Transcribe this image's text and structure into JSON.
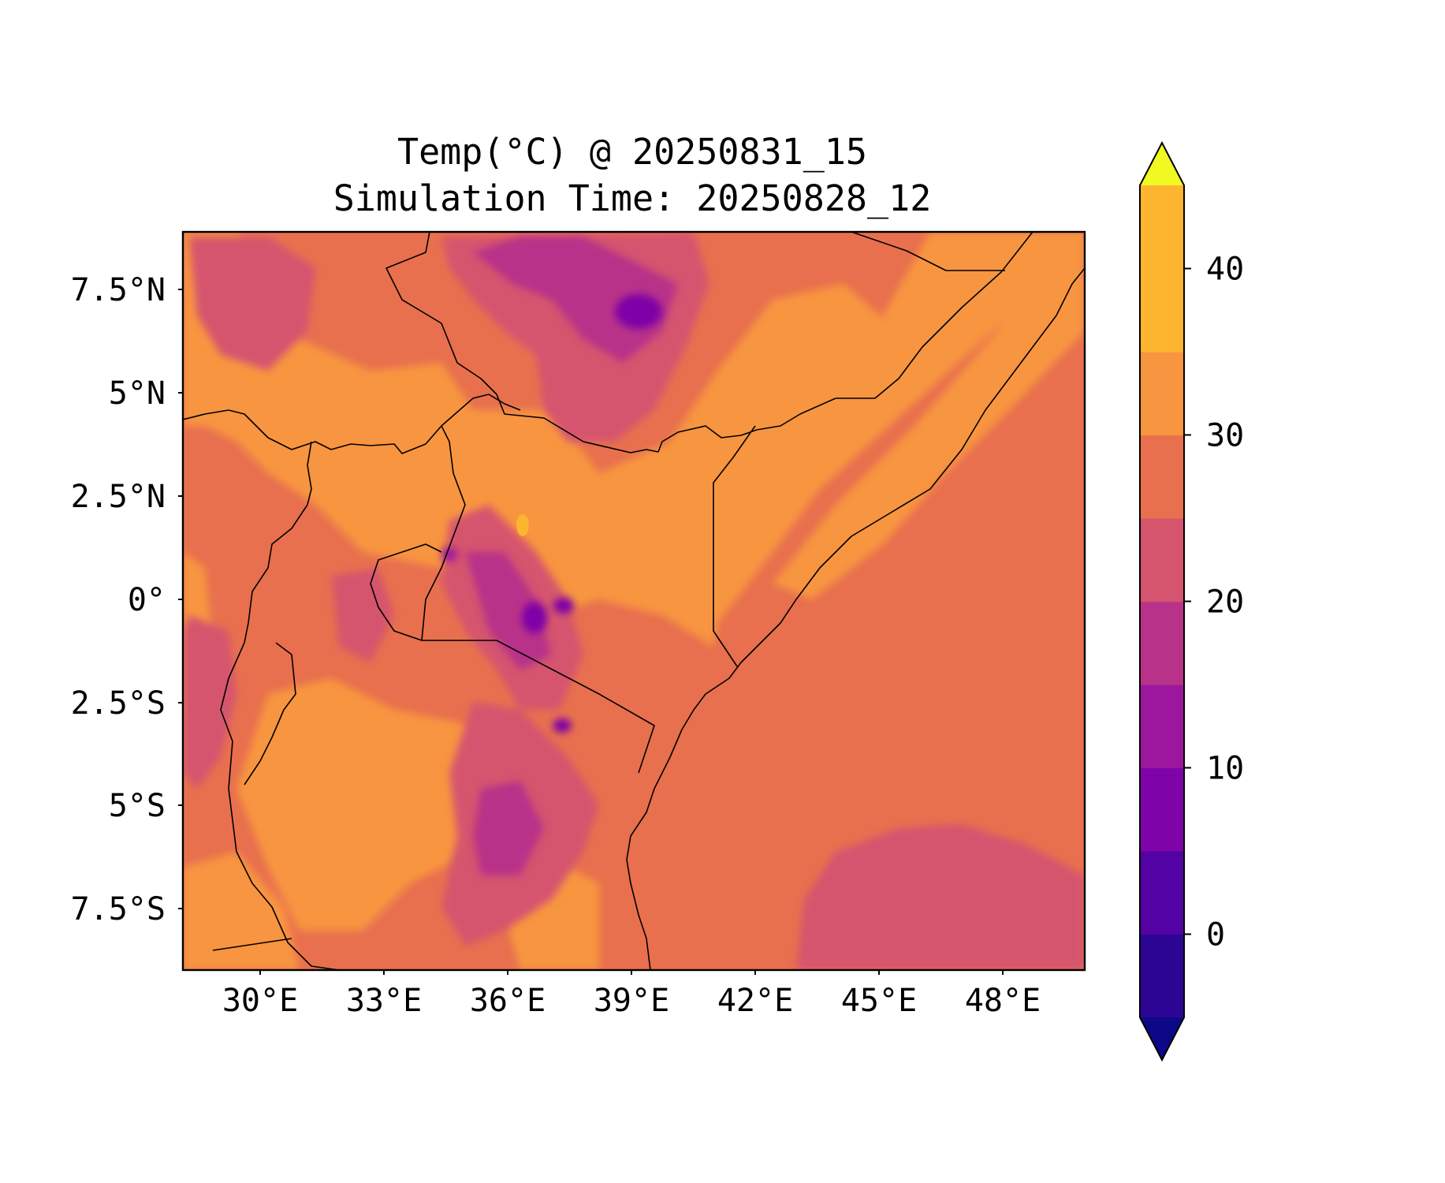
{
  "figure": {
    "title_line1": "Temp(°C) @ 20250831_15",
    "title_line2": "Simulation Time: 20250828_12"
  },
  "map": {
    "lon_range": [
      27,
      50.5
    ],
    "lat_range": [
      -9,
      9
    ],
    "x_ticks": [
      "30°E",
      "33°E",
      "36°E",
      "39°E",
      "42°E",
      "45°E",
      "48°E"
    ],
    "y_ticks": [
      "7.5°N",
      "5°N",
      "2.5°N",
      "0°",
      "2.5°S",
      "5°S",
      "7.5°S"
    ],
    "features": [
      "coastline",
      "country-borders",
      "lakes"
    ]
  },
  "colorbar": {
    "ticks": [
      "0",
      "10",
      "20",
      "30",
      "40"
    ],
    "levels": [
      -5,
      0,
      5,
      10,
      15,
      20,
      25,
      30,
      35,
      40,
      45
    ],
    "colors": [
      "#0d0887",
      "#2c0594",
      "#5302a3",
      "#7e03a8",
      "#9c179e",
      "#b83289",
      "#d5546e",
      "#e8704e",
      "#f89540",
      "#fdb42f",
      "#f0f921"
    ],
    "extend": "both"
  },
  "chart_data": {
    "type": "heatmap",
    "title": "Temp(°C) @ 20250831_15 Simulation Time: 20250828_12",
    "variable": "Temp(°C)",
    "valid_time": "20250831_15",
    "simulation_time": "20250828_12",
    "xlim": [
      27,
      50.5
    ],
    "ylim": [
      -9,
      9
    ],
    "color_range": [
      -5,
      45
    ],
    "colormap": "plasma"
  }
}
